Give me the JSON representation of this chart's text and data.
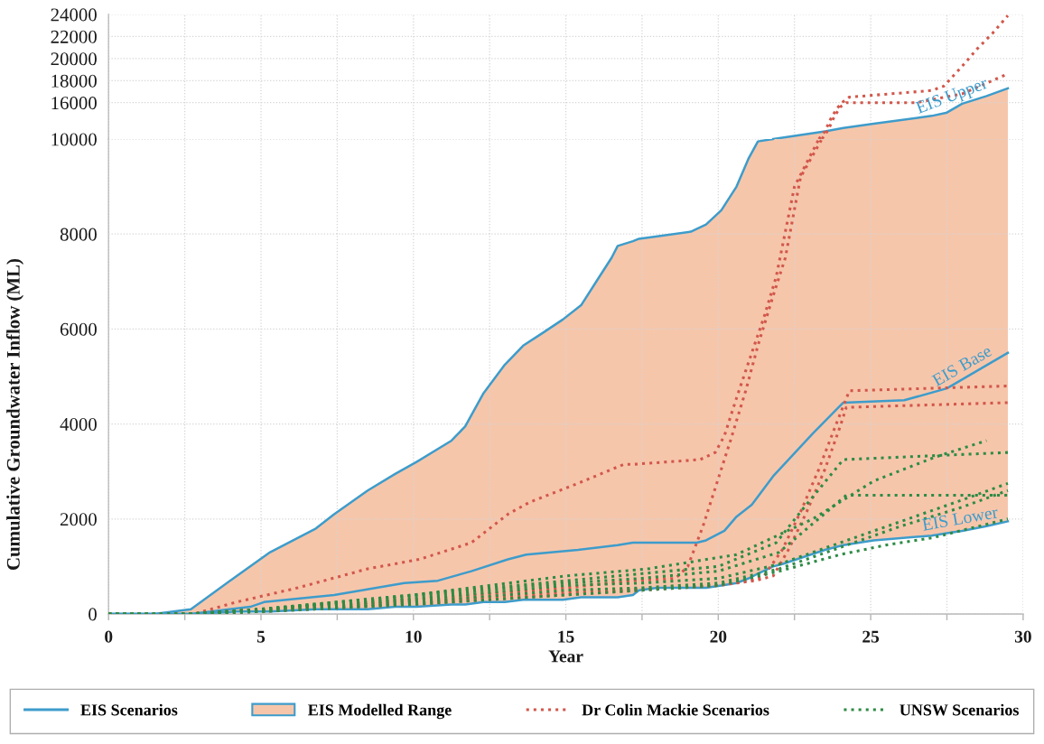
{
  "chart_data": [
    {
      "type": "line",
      "xlim": [
        0,
        30
      ],
      "xticks": [
        0,
        {
          "value": 2.5,
          "label": null
        },
        5,
        {
          "value": 7.5,
          "label": null
        },
        10,
        {
          "value": 12.5,
          "label": null
        },
        15,
        {
          "value": 17.5,
          "label": null
        },
        20,
        {
          "value": 22.5,
          "label": null
        },
        25,
        {
          "value": 27.5,
          "label": null
        },
        30
      ],
      "ylim": [
        12700,
        24000
      ],
      "yticks": [
        16000,
        18000,
        20000,
        22000,
        24000
      ],
      "tick_labels": "y",
      "grid": true,
      "series": [
        {
          "type": "area",
          "color": "#f6c6ab",
          "x": [
            21.8,
            23.5,
            24.1,
            25.1,
            27.0,
            27.5,
            28.0,
            28.8,
            29.5
          ],
          "values": [
            12700,
            13400,
            13700,
            14100,
            14800,
            15100,
            15900,
            16600,
            17300
          ]
        },
        {
          "line_style": "solid",
          "color": "#3d9ccb",
          "x": [
            21.8,
            23.5,
            24.1,
            25.1,
            27.0,
            27.5,
            28.0,
            28.8,
            29.5
          ],
          "values": [
            12700,
            13400,
            13700,
            14100,
            14800,
            15100,
            15900,
            16600,
            17300
          ]
        },
        {
          "line_style": "dotted",
          "color": "#d2574b",
          "x": [
            23.3,
            23.5,
            23.7,
            23.9,
            24.1,
            24.3,
            27.0,
            27.4,
            28.0,
            28.5,
            29.0,
            29.5
          ],
          "values": [
            12700,
            13400,
            14600,
            15500,
            16100,
            16500,
            17100,
            17500,
            19300,
            20900,
            22300,
            23900
          ]
        },
        {
          "line_style": "dotted",
          "color": "#d2574b",
          "x": [
            23.4,
            23.6,
            23.8,
            24.0,
            24.2,
            26.5,
            28.0,
            29.4
          ],
          "values": [
            12700,
            13500,
            14700,
            15600,
            16000,
            16000,
            16800,
            18500
          ]
        }
      ],
      "annotations": [
        {
          "text": "EIS Upper",
          "x": 27.8,
          "y": 15600
        }
      ]
    },
    {
      "type": "line",
      "xlabel": "Year",
      "ylabel": "Cumulative Groundwater Inflow (ML)",
      "xlim": [
        0,
        30
      ],
      "xticks": [
        0,
        {
          "value": 2.5,
          "label": null
        },
        5,
        {
          "value": 7.5,
          "label": null
        },
        10,
        {
          "value": 12.5,
          "label": null
        },
        15,
        {
          "value": 17.5,
          "label": null
        },
        20,
        {
          "value": 22.5,
          "label": null
        },
        25,
        {
          "value": 27.5,
          "label": null
        },
        30
      ],
      "ylim": [
        0,
        10000
      ],
      "yticks": [
        0,
        2000,
        4000,
        6000,
        8000,
        10000
      ],
      "grid": true,
      "legend": "bottom",
      "series": [
        {
          "name": "EIS Scenarios",
          "line_style": "solid",
          "color": "#3d9ccb",
          "x": [
            0,
            1.5,
            2.7,
            4.2,
            5.3,
            6.8,
            7.4,
            8.5,
            9.4,
            10.1,
            11.25,
            11.7,
            12.3,
            13.0,
            13.6,
            14.2,
            14.9,
            15.5,
            16.0,
            16.5,
            16.7,
            17.2,
            17.4,
            18.0,
            19.1,
            19.6,
            20.1,
            20.6,
            21.0,
            21.3,
            21.8
          ],
          "values": [
            0,
            0,
            100,
            800,
            1300,
            1800,
            2100,
            2600,
            2950,
            3200,
            3650,
            3950,
            4650,
            5250,
            5650,
            5900,
            6200,
            6500,
            7000,
            7500,
            7750,
            7850,
            7900,
            7950,
            8050,
            8200,
            8500,
            9000,
            9600,
            9950,
            10000
          ]
        },
        {
          "name": "EIS Modelled Range",
          "color": "#f6c6ab",
          "x": [
            0,
            1.5,
            2.7,
            4.2,
            5.3,
            6.8,
            7.4,
            8.5,
            9.4,
            10.1,
            11.25,
            11.7,
            12.3,
            13.0,
            13.6,
            14.2,
            14.9,
            15.5,
            16.0,
            16.5,
            16.7,
            17.2,
            17.4,
            18.0,
            19.1,
            19.6,
            20.1,
            20.6,
            21.0,
            21.3,
            21.8,
            22.1,
            23.5,
            24.1,
            25.1,
            27.0,
            27.5,
            28.0,
            28.8,
            29.5
          ],
          "values": [
            null,
            null,
            null,
            null,
            null,
            null,
            null,
            null,
            null,
            null,
            null,
            null,
            null,
            null,
            null,
            null,
            null,
            null,
            null,
            null,
            null,
            null,
            null,
            null,
            null,
            null,
            null,
            null,
            null,
            null,
            null,
            null,
            null,
            null,
            null,
            null,
            null,
            null,
            null,
            null
          ],
          "lower": [
            0,
            0,
            0,
            50,
            50,
            100,
            100,
            100,
            150,
            150,
            200,
            200,
            250,
            250,
            300,
            300,
            300,
            350,
            350,
            350,
            350,
            400,
            500,
            550,
            550,
            550,
            600,
            650,
            750,
            850,
            1000,
            1050,
            1350,
            1450,
            1550,
            1650,
            1700,
            1750,
            1850,
            1950
          ],
          "upper": [
            0,
            0,
            100,
            800,
            1300,
            1800,
            2100,
            2600,
            2950,
            3200,
            3650,
            3950,
            4650,
            5250,
            5650,
            5900,
            6200,
            6500,
            7000,
            7500,
            7750,
            7850,
            7900,
            7950,
            8050,
            8200,
            8500,
            9000,
            9600,
            9950,
            10000,
            10000,
            10000,
            10000,
            10000,
            10000,
            10000,
            10000,
            10000,
            10000
          ]
        },
        {
          "line_style": "solid",
          "color": "#3d9ccb",
          "x": [
            0,
            2.7,
            4.65,
            5.1,
            7.4,
            9.7,
            10.8,
            11.9,
            13.1,
            13.7,
            15.4,
            16.7,
            17.2,
            19.3,
            19.6,
            20.2,
            20.6,
            21.1,
            21.8,
            23.1,
            24.1,
            26.1,
            27.5,
            29.5
          ],
          "values": [
            0,
            0,
            150,
            250,
            400,
            650,
            700,
            900,
            1150,
            1250,
            1350,
            1450,
            1500,
            1500,
            1550,
            1750,
            2050,
            2300,
            2900,
            3800,
            4450,
            4500,
            4750,
            5500
          ]
        },
        {
          "line_style": "solid",
          "color": "#3d9ccb",
          "x": [
            0,
            1.5,
            2.7,
            4.2,
            5.3,
            6.8,
            7.4,
            8.5,
            9.4,
            10.1,
            11.25,
            11.7,
            12.3,
            13.0,
            13.6,
            14.2,
            14.9,
            15.5,
            16.0,
            16.5,
            16.7,
            17.2,
            17.4,
            18.0,
            19.1,
            19.6,
            20.1,
            20.6,
            21.0,
            21.3,
            21.8,
            22.1,
            23.5,
            24.1,
            25.1,
            27.0,
            27.5,
            28.0,
            28.8,
            29.5
          ],
          "values": [
            0,
            0,
            0,
            50,
            50,
            100,
            100,
            100,
            150,
            150,
            200,
            200,
            250,
            250,
            300,
            300,
            300,
            350,
            350,
            350,
            350,
            400,
            500,
            550,
            550,
            550,
            600,
            650,
            750,
            850,
            1000,
            1050,
            1350,
            1450,
            1550,
            1650,
            1700,
            1750,
            1850,
            1950
          ]
        },
        {
          "name": "Dr Colin Mackie Scenarios",
          "line_style": "dotted",
          "color": "#d2574b",
          "x": [
            0,
            2.8,
            4.2,
            6.2,
            8.5,
            10.2,
            11.9,
            13.1,
            13.8,
            15.4,
            16.9,
            17.2,
            19.4,
            19.9,
            20.2,
            20.6,
            21.1,
            21.5,
            21.9,
            22.5,
            23.3
          ],
          "values": [
            0,
            0,
            250,
            550,
            950,
            1150,
            1500,
            2100,
            2350,
            2750,
            3150,
            3150,
            3250,
            3400,
            3750,
            4550,
            5500,
            6250,
            7100,
            9000,
            10000
          ]
        },
        {
          "line_style": "dotted",
          "color": "#d2574b",
          "x": [
            0,
            2.7,
            5,
            10,
            15,
            17.2,
            18.6,
            19.0,
            19.5,
            19.9,
            20.4,
            20.9,
            21.3,
            21.8,
            22.2,
            22.7,
            23.4
          ],
          "values": [
            0,
            0,
            100,
            300,
            550,
            700,
            750,
            1000,
            1850,
            2650,
            3650,
            4700,
            5650,
            6700,
            7500,
            9200,
            10000
          ]
        },
        {
          "line_style": "dotted",
          "color": "#d2574b",
          "x": [
            0,
            2.7,
            5,
            10,
            15,
            20,
            21.0,
            21.5,
            22.1,
            22.7,
            23.3,
            23.9,
            24.3,
            29.5
          ],
          "values": [
            0,
            0,
            100,
            250,
            450,
            600,
            700,
            800,
            1350,
            2150,
            3050,
            4050,
            4700,
            4800
          ]
        },
        {
          "line_style": "dotted",
          "color": "#d2574b",
          "x": [
            0,
            2.7,
            5,
            10,
            15,
            20,
            21.2,
            21.8,
            22.3,
            22.9,
            23.5,
            24.0,
            24.2,
            29.5
          ],
          "values": [
            0,
            0,
            50,
            200,
            400,
            600,
            700,
            800,
            1350,
            2150,
            3050,
            3950,
            4350,
            4450
          ]
        },
        {
          "name": "UNSW Scenarios",
          "line_style": "dotted",
          "color": "#2e8b45",
          "x": [
            0,
            2.7,
            5,
            10,
            15,
            17.7,
            20.6,
            23.1,
            25.1,
            27.1,
            28.8
          ],
          "values": [
            0,
            0,
            100,
            400,
            800,
            950,
            1250,
            2000,
            2800,
            3300,
            3650
          ]
        },
        {
          "line_style": "dotted",
          "color": "#2e8b45",
          "x": [
            0,
            2.7,
            5,
            10,
            15,
            17.5,
            20,
            21.9,
            22.7,
            24.1,
            29.5
          ],
          "values": [
            0,
            0,
            100,
            400,
            700,
            850,
            1000,
            1500,
            2150,
            3250,
            3400
          ]
        },
        {
          "line_style": "dotted",
          "color": "#2e8b45",
          "x": [
            0,
            2.7,
            5,
            10,
            15,
            17.5,
            20,
            22,
            23.1,
            24.2,
            29.5
          ],
          "values": [
            0,
            0,
            100,
            350,
            650,
            750,
            900,
            1300,
            1900,
            2500,
            2500
          ]
        },
        {
          "line_style": "dotted",
          "color": "#2e8b45",
          "x": [
            0,
            2.7,
            5,
            10,
            15,
            17.5,
            20,
            22,
            24,
            26,
            28,
            29.5
          ],
          "values": [
            0,
            0,
            100,
            300,
            600,
            650,
            750,
            1050,
            1500,
            1950,
            2400,
            2750
          ]
        },
        {
          "line_style": "dotted",
          "color": "#2e8b45",
          "x": [
            0,
            2.7,
            5,
            10,
            15,
            17.5,
            20,
            22,
            24,
            26,
            28,
            29.5
          ],
          "values": [
            0,
            0,
            50,
            250,
            500,
            550,
            650,
            950,
            1400,
            1850,
            2250,
            2600
          ]
        },
        {
          "line_style": "dotted",
          "color": "#2e8b45",
          "x": [
            0,
            2.7,
            5,
            10,
            15,
            17.5,
            20,
            22,
            24,
            25.5,
            27,
            29.5
          ],
          "values": [
            0,
            0,
            50,
            200,
            400,
            500,
            600,
            900,
            1250,
            1450,
            1600,
            2000
          ]
        }
      ],
      "annotations": [
        {
          "text": "EIS Base",
          "x": 28.2,
          "y": 5000
        },
        {
          "text": "EIS Lower",
          "x": 28.0,
          "y": 1750
        }
      ]
    }
  ]
}
